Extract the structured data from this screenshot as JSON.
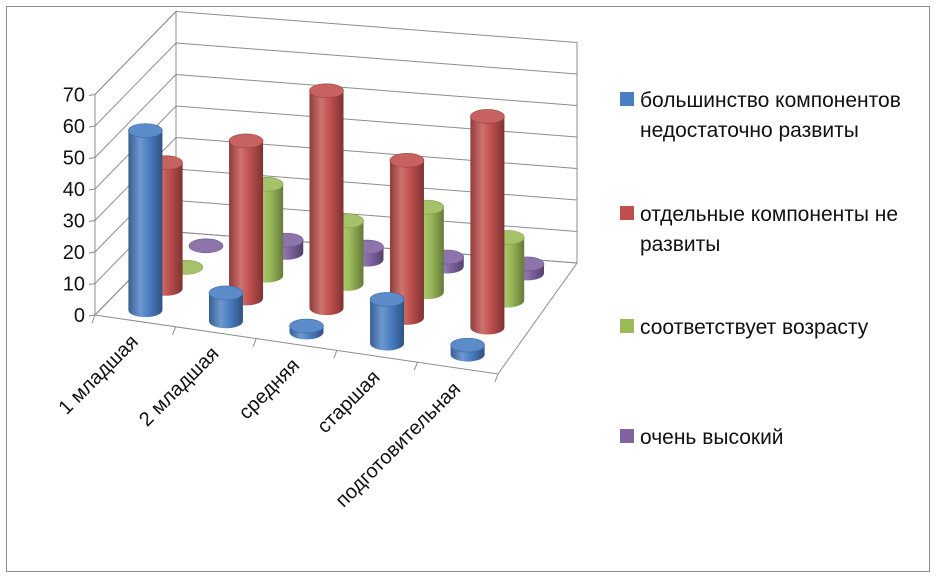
{
  "chart_data": {
    "type": "bar",
    "style": "3d-cylinder",
    "categories": [
      "1 младшая",
      "2 младшая",
      "средняя",
      "старшая",
      "подготовительная"
    ],
    "series": [
      {
        "name": "большинство компонентов недостаточно развиты",
        "color": "#4a7ec3",
        "values": [
          57,
          9,
          2,
          14,
          3
        ]
      },
      {
        "name": "отдельные компоненты не развиты",
        "color": "#c0504d",
        "values": [
          40,
          50,
          69,
          50,
          67
        ]
      },
      {
        "name": "соответствует возрасту",
        "color": "#9bbb59",
        "values": [
          0,
          29,
          20,
          27,
          20
        ]
      },
      {
        "name": "очень высокий",
        "color": "#8064a2",
        "values": [
          0,
          4,
          4,
          3,
          3
        ]
      }
    ],
    "yticks": [
      "0",
      "10",
      "20",
      "30",
      "40",
      "50",
      "60",
      "70"
    ],
    "ylim": [
      0,
      70
    ],
    "grid": true,
    "legend_position": "right"
  }
}
